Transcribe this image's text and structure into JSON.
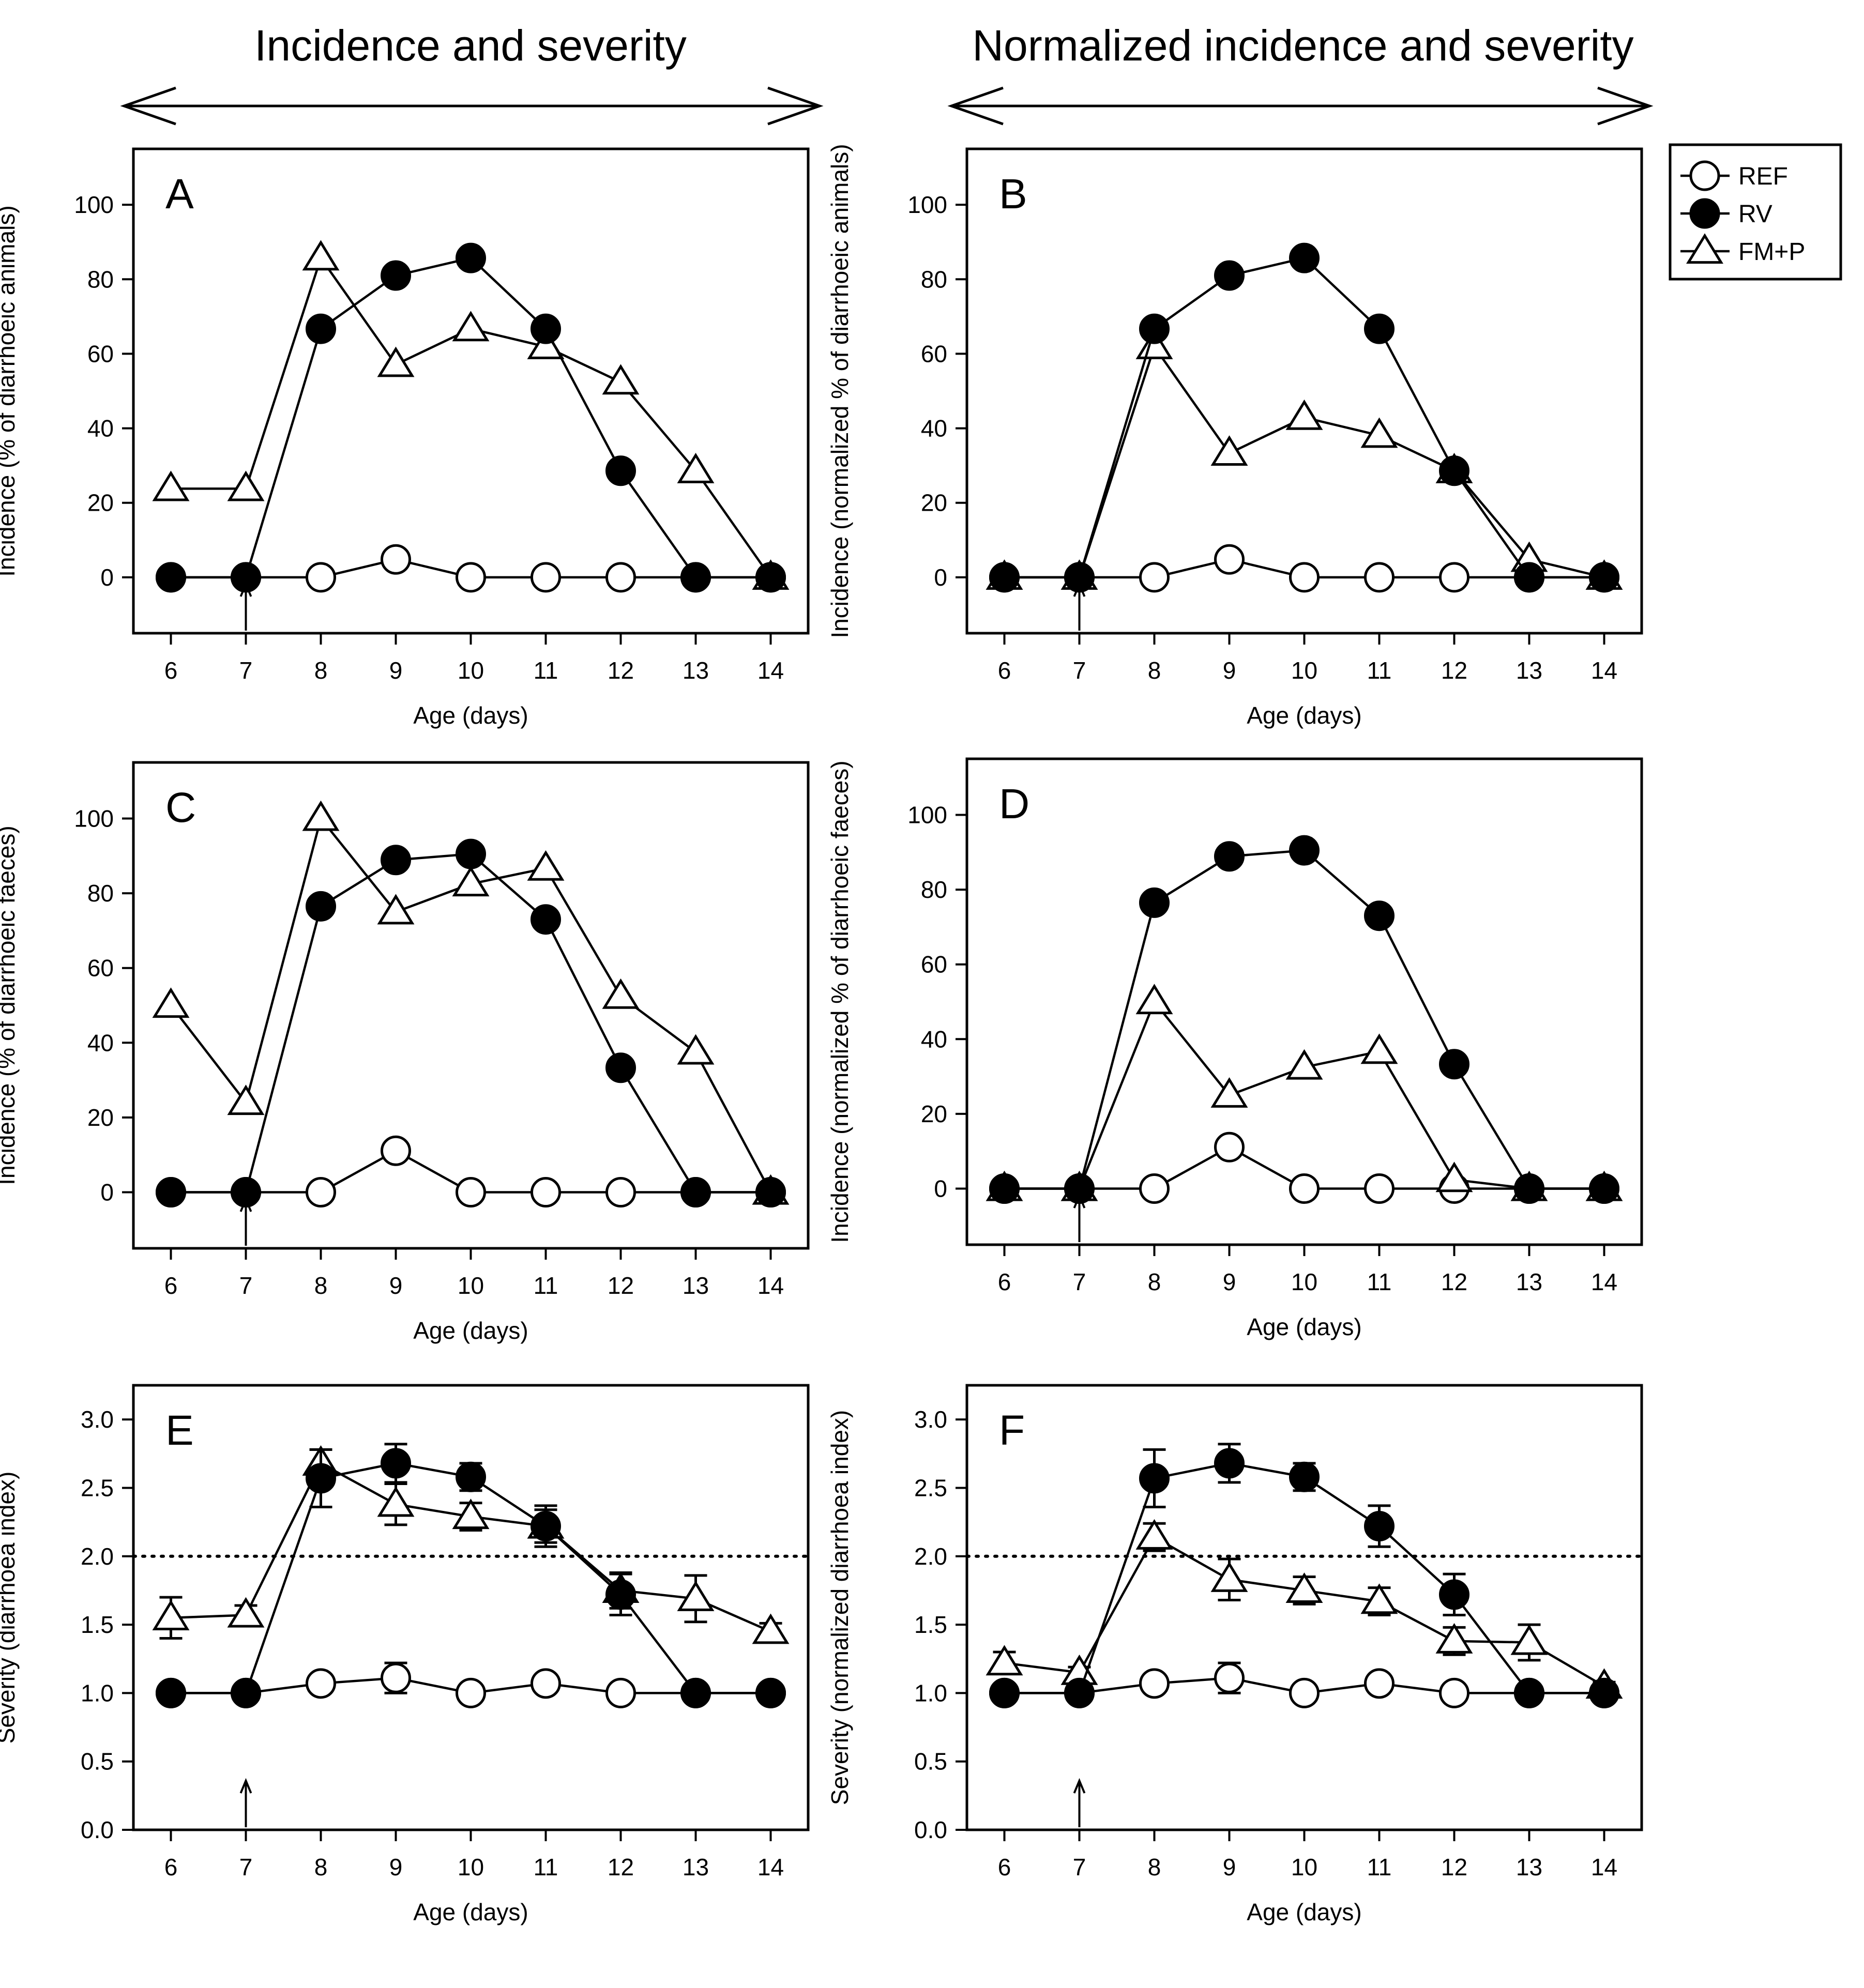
{
  "headers": {
    "left": "Incidence and severity",
    "right": "Normalized incidence and severity"
  },
  "legend": [
    {
      "label": "REF",
      "marker": "circle-open"
    },
    {
      "label": "RV",
      "marker": "circle-filled"
    },
    {
      "label": "FM+P",
      "marker": "triangle-open"
    }
  ],
  "chart_data": [
    {
      "panel": "A",
      "type": "line",
      "xlabel": "Age (days)",
      "ylabel": "Incidence (% of diarrhoeic animals)",
      "x": [
        6,
        7,
        8,
        9,
        10,
        11,
        12,
        13,
        14
      ],
      "xlim": [
        5.5,
        14.5
      ],
      "ylim": [
        -15,
        115
      ],
      "yticks": [
        0,
        20,
        40,
        60,
        80,
        100
      ],
      "arrow_x": 7,
      "series": [
        {
          "name": "REF",
          "values": [
            0,
            0,
            0,
            4.8,
            0,
            0,
            0,
            0,
            0
          ]
        },
        {
          "name": "RV",
          "values": [
            0,
            0,
            66.7,
            81,
            85.7,
            66.7,
            28.6,
            0,
            0
          ]
        },
        {
          "name": "FM+P",
          "values": [
            23.8,
            23.8,
            85.7,
            57.1,
            66.7,
            61.9,
            52.4,
            28.6,
            0
          ]
        }
      ]
    },
    {
      "panel": "B",
      "type": "line",
      "xlabel": "Age (days)",
      "ylabel": "Incidence (normalized % of diarrhoeic animals)",
      "x": [
        6,
        7,
        8,
        9,
        10,
        11,
        12,
        13,
        14
      ],
      "xlim": [
        5.5,
        14.5
      ],
      "ylim": [
        -15,
        115
      ],
      "yticks": [
        0,
        20,
        40,
        60,
        80,
        100
      ],
      "arrow_x": 7,
      "series": [
        {
          "name": "REF",
          "values": [
            0,
            0,
            0,
            4.8,
            0,
            0,
            0,
            0,
            0
          ]
        },
        {
          "name": "RV",
          "values": [
            0,
            0,
            66.7,
            81,
            85.7,
            66.7,
            28.6,
            0,
            0
          ]
        },
        {
          "name": "FM+P",
          "values": [
            0,
            0,
            61.9,
            33.3,
            42.9,
            38.1,
            28.6,
            4.8,
            0
          ]
        }
      ]
    },
    {
      "panel": "C",
      "type": "line",
      "xlabel": "Age (days)",
      "ylabel": "Incidence (% of diarrhoeic faeces)",
      "x": [
        6,
        7,
        8,
        9,
        10,
        11,
        12,
        13,
        14
      ],
      "xlim": [
        5.5,
        14.5
      ],
      "ylim": [
        -15,
        115
      ],
      "yticks": [
        0,
        20,
        40,
        60,
        80,
        100
      ],
      "arrow_x": 7,
      "series": [
        {
          "name": "REF",
          "values": [
            0,
            0,
            0,
            11.1,
            0,
            0,
            0,
            0,
            0
          ]
        },
        {
          "name": "RV",
          "values": [
            0,
            0,
            76.5,
            88.9,
            90.5,
            73,
            33.3,
            0,
            0
          ]
        },
        {
          "name": "FM+P",
          "values": [
            50,
            24,
            100,
            75,
            82.5,
            86.7,
            52.4,
            37.5,
            0
          ]
        }
      ]
    },
    {
      "panel": "D",
      "type": "line",
      "xlabel": "Age (days)",
      "ylabel": "Incidence (normalized % of diarrhoeic faeces)",
      "x": [
        6,
        7,
        8,
        9,
        10,
        11,
        12,
        13,
        14
      ],
      "xlim": [
        5.5,
        14.5
      ],
      "ylim": [
        -15,
        115
      ],
      "yticks": [
        0,
        20,
        40,
        60,
        80,
        100
      ],
      "arrow_x": 7,
      "series": [
        {
          "name": "REF",
          "values": [
            0,
            0,
            0,
            11.1,
            0,
            0,
            0,
            0,
            0
          ]
        },
        {
          "name": "RV",
          "values": [
            0,
            0,
            76.5,
            88.9,
            90.5,
            73,
            33.3,
            0,
            0
          ]
        },
        {
          "name": "FM+P",
          "values": [
            0,
            0,
            50,
            25,
            32.5,
            36.7,
            2.4,
            0,
            0
          ]
        }
      ]
    },
    {
      "panel": "E",
      "type": "line",
      "xlabel": "Age (days)",
      "ylabel": "Severity (diarrhoea index)",
      "x": [
        6,
        7,
        8,
        9,
        10,
        11,
        12,
        13,
        14
      ],
      "xlim": [
        5.5,
        14.5
      ],
      "ylim": [
        0,
        3.25
      ],
      "yticks": [
        0.0,
        0.5,
        1.0,
        1.5,
        2.0,
        2.5,
        3.0
      ],
      "reference_line": 2.0,
      "arrow_x": 7,
      "series": [
        {
          "name": "REF",
          "values": [
            1,
            1,
            1.07,
            1.11,
            1,
            1.07,
            1,
            1,
            1
          ],
          "errors": [
            0,
            0,
            0.05,
            0.11,
            0,
            0.05,
            0,
            0,
            0
          ]
        },
        {
          "name": "RV",
          "values": [
            1,
            1,
            2.57,
            2.68,
            2.58,
            2.22,
            1.72,
            1,
            1
          ],
          "errors": [
            0,
            0,
            0.21,
            0.14,
            0.1,
            0.15,
            0.15,
            0,
            0
          ]
        },
        {
          "name": "FM+P",
          "values": [
            1.55,
            1.57,
            2.68,
            2.38,
            2.29,
            2.22,
            1.75,
            1.69,
            1.45
          ],
          "errors": [
            0.15,
            0.07,
            0.1,
            0.15,
            0.1,
            0.12,
            0.13,
            0.17,
            0.06
          ]
        }
      ]
    },
    {
      "panel": "F",
      "type": "line",
      "xlabel": "Age (days)",
      "ylabel": "Severity (normalized diarrhoea index)",
      "x": [
        6,
        7,
        8,
        9,
        10,
        11,
        12,
        13,
        14
      ],
      "xlim": [
        5.5,
        14.5
      ],
      "ylim": [
        0,
        3.25
      ],
      "yticks": [
        0.0,
        0.5,
        1.0,
        1.5,
        2.0,
        2.5,
        3.0
      ],
      "reference_line": 2.0,
      "arrow_x": 7,
      "series": [
        {
          "name": "REF",
          "values": [
            1,
            1,
            1.07,
            1.11,
            1,
            1.07,
            1,
            1,
            1
          ],
          "errors": [
            0,
            0,
            0.05,
            0.11,
            0,
            0.05,
            0,
            0,
            0
          ]
        },
        {
          "name": "RV",
          "values": [
            1,
            1,
            2.57,
            2.68,
            2.58,
            2.22,
            1.72,
            1,
            1
          ],
          "errors": [
            0,
            0,
            0.21,
            0.14,
            0.1,
            0.15,
            0.15,
            0,
            0
          ]
        },
        {
          "name": "FM+P",
          "values": [
            1.22,
            1.15,
            2.14,
            1.83,
            1.75,
            1.67,
            1.38,
            1.37,
            1.05
          ],
          "errors": [
            0.08,
            0.04,
            0.1,
            0.15,
            0.1,
            0.1,
            0.1,
            0.13,
            0.03
          ]
        }
      ]
    }
  ]
}
